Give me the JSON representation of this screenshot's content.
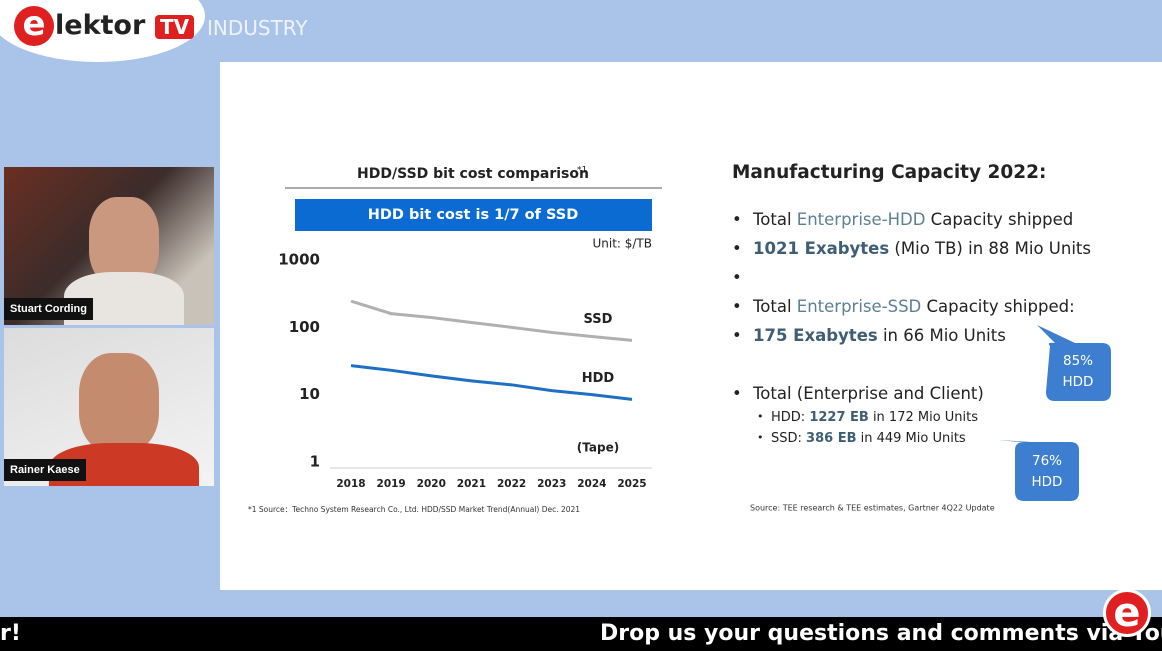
{
  "header": {
    "brand": "lektor",
    "tv": "TV",
    "channel": "INDUSTRY"
  },
  "speakers": [
    "Stuart Cording",
    "Rainer Kaese"
  ],
  "chart_data": {
    "type": "line",
    "title": "HDD/SSD bit cost comparison",
    "title_note": "*1",
    "banner": "HDD bit cost is 1/7 of SSD",
    "unit": "Unit: $/TB",
    "categories": [
      "2018",
      "2019",
      "2020",
      "2021",
      "2022",
      "2023",
      "2024",
      "2025"
    ],
    "series": [
      {
        "name": "SSD",
        "color": "#b0b0b0",
        "values": [
          245,
          160,
          140,
          118,
          100,
          84,
          73,
          64
        ]
      },
      {
        "name": "HDD",
        "color": "#1f6fc5",
        "values": [
          27,
          23,
          19,
          16,
          14,
          11.5,
          10,
          8.5
        ]
      }
    ],
    "ylim": [
      1,
      1000
    ],
    "yticks": [
      1,
      10,
      100,
      1000
    ],
    "log_y": true,
    "grid": false,
    "annotation": "(Tape)",
    "footnote": "*1 Source：Techno System Research Co., Ltd. HDD/SSD Market Trend(Annual) Dec. 2021"
  },
  "slide": {
    "heading": "Manufacturing Capacity 2022:",
    "bullets": [
      [
        "Total ",
        "Enterprise-HDD",
        " Capacity shipped"
      ],
      [
        "1021 Exabytes",
        " (Mio TB) in 88 Mio Units"
      ],
      [],
      [
        "Total ",
        "Enterprise-SSD",
        " Capacity shipped:"
      ],
      [
        "175 Exabytes",
        " in 66 Mio Units"
      ],
      [
        "Total (Enterprise and Client)"
      ]
    ],
    "sub_bullets": [
      [
        "HDD: ",
        "1227 EB",
        " in 172 Mio Units"
      ],
      [
        "SSD: ",
        "386 EB",
        " in 449 Mio Units"
      ]
    ],
    "callouts": [
      [
        "85%",
        "HDD"
      ],
      [
        "76%",
        "HDD"
      ]
    ],
    "source": "Source: TEE research & TEE estimates, Gartner 4Q22 Update"
  },
  "ticker": [
    "r!",
    "Drop us your questions and comments via YouTube"
  ]
}
